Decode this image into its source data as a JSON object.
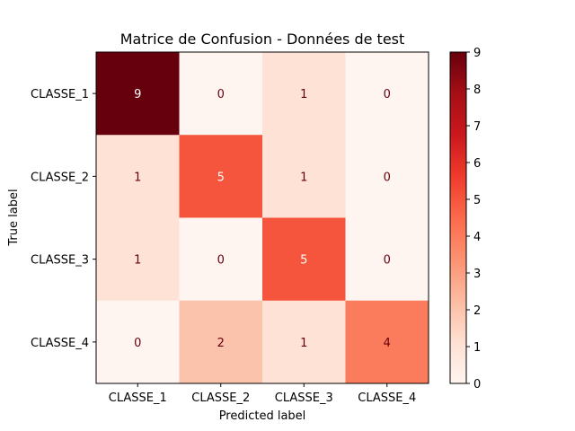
{
  "chart_data": {
    "type": "heatmap",
    "title": "Matrice de Confusion - Données de test",
    "xlabel": "Predicted label",
    "ylabel": "True label",
    "x_categories": [
      "CLASSE_1",
      "CLASSE_2",
      "CLASSE_3",
      "CLASSE_4"
    ],
    "y_categories": [
      "CLASSE_1",
      "CLASSE_2",
      "CLASSE_3",
      "CLASSE_4"
    ],
    "values": [
      [
        9,
        0,
        1,
        0
      ],
      [
        1,
        5,
        1,
        0
      ],
      [
        1,
        0,
        5,
        0
      ],
      [
        0,
        2,
        1,
        4
      ]
    ],
    "colorbar_ticks": [
      "0",
      "1",
      "2",
      "3",
      "4",
      "5",
      "6",
      "7",
      "8",
      "9"
    ],
    "vmin": 0,
    "vmax": 9,
    "colormap": "Reds",
    "colormap_stops": [
      "#fff5f0",
      "#fee0d2",
      "#fcbba1",
      "#fc9272",
      "#fb6a4a",
      "#ef3b2c",
      "#cb181d",
      "#a50f15",
      "#67000d"
    ]
  }
}
